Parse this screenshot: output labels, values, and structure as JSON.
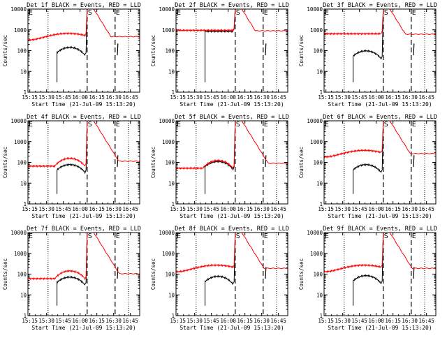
{
  "chart_data": [
    {
      "type": "line",
      "title": "Det 1f BLACK = Events, RED = LLD",
      "xlabel": "Start Time (21-Jul-09 15:13:20)",
      "ylabel": "Counts/sec",
      "x_ticks": [
        "15:15",
        "15:30",
        "15:45",
        "16:00",
        "16:15",
        "16:30",
        "16:45"
      ],
      "y_ticks": [
        "1",
        "10",
        "100",
        "1000",
        "10000"
      ],
      "ylim": [
        1,
        10000
      ],
      "y_scale": "log",
      "x_minutes_range": [
        0,
        100
      ],
      "markers": [
        {
          "label": "E",
          "time_min": 0
        },
        {
          "label": "S",
          "time_min": 53
        },
        {
          "label": "E",
          "time_min": 78
        }
      ],
      "series": [
        {
          "name": "Events",
          "color": "#000000",
          "style": "A",
          "level": 110
        },
        {
          "name": "LLD",
          "color": "#ff0000",
          "style": "R",
          "level": 500
        }
      ]
    },
    {
      "type": "line",
      "title": "Det 2f BLACK = Events, RED = LLD",
      "xlabel": "Start Time (21-Jul-09 15:13:20)",
      "ylabel": "Counts/sec",
      "x_ticks": [
        "15:15",
        "15:30",
        "15:45",
        "16:00",
        "16:15",
        "16:30",
        "16:45"
      ],
      "y_ticks": [
        "1",
        "10",
        "100",
        "1000",
        "10000"
      ],
      "ylim": [
        1,
        10000
      ],
      "y_scale": "log",
      "x_minutes_range": [
        0,
        100
      ],
      "markers": [
        {
          "label": "E",
          "time_min": 0
        },
        {
          "label": "S",
          "time_min": 53
        },
        {
          "label": "E",
          "time_min": 78
        }
      ],
      "series": [
        {
          "name": "Events",
          "color": "#000000",
          "style": "F",
          "level": 850
        },
        {
          "name": "LLD",
          "color": "#ff0000",
          "style": "F",
          "level": 950
        }
      ]
    },
    {
      "type": "line",
      "title": "Det 3f BLACK = Events, RED = LLD",
      "xlabel": "Start Time (21-Jul-09 15:13:20)",
      "ylabel": "Counts/sec",
      "x_ticks": [
        "15:15",
        "15:30",
        "15:45",
        "16:00",
        "16:15",
        "16:30",
        "16:45"
      ],
      "y_ticks": [
        "1",
        "10",
        "100",
        "1000",
        "10000"
      ],
      "ylim": [
        1,
        10000
      ],
      "y_scale": "log",
      "x_minutes_range": [
        0,
        100
      ],
      "markers": [
        {
          "label": "E",
          "time_min": 0
        },
        {
          "label": "S",
          "time_min": 53
        },
        {
          "label": "E",
          "time_min": 78
        }
      ],
      "series": [
        {
          "name": "Events",
          "color": "#000000",
          "style": "A",
          "level": 75
        },
        {
          "name": "LLD",
          "color": "#ff0000",
          "style": "F",
          "level": 650
        }
      ]
    },
    {
      "type": "line",
      "title": "Det 4f BLACK = Events, RED = LLD",
      "xlabel": "Start Time (21-Jul-09 15:13:20)",
      "ylabel": "Counts/sec",
      "x_ticks": [
        "15:15",
        "15:30",
        "15:45",
        "16:00",
        "16:15",
        "16:30",
        "16:45"
      ],
      "y_ticks": [
        "1",
        "10",
        "100",
        "1000",
        "10000"
      ],
      "ylim": [
        1,
        10000
      ],
      "y_scale": "log",
      "x_minutes_range": [
        0,
        100
      ],
      "markers": [
        {
          "label": "E",
          "time_min": 0
        },
        {
          "label": "S",
          "time_min": 53
        },
        {
          "label": "E",
          "time_min": 78
        }
      ],
      "series": [
        {
          "name": "Events",
          "color": "#000000",
          "style": "A",
          "level": 60
        },
        {
          "name": "LLD",
          "color": "#ff0000",
          "style": "A",
          "level": 120
        }
      ]
    },
    {
      "type": "line",
      "title": "Det 5f BLACK = Events, RED = LLD",
      "xlabel": "Start Time (21-Jul-09 15:13:20)",
      "ylabel": "Counts/sec",
      "x_ticks": [
        "15:15",
        "15:30",
        "15:45",
        "16:00",
        "16:15",
        "16:30",
        "16:45"
      ],
      "y_ticks": [
        "1",
        "10",
        "100",
        "1000",
        "10000"
      ],
      "ylim": [
        1,
        10000
      ],
      "y_scale": "log",
      "x_minutes_range": [
        0,
        100
      ],
      "markers": [
        {
          "label": "E",
          "time_min": 0
        },
        {
          "label": "S",
          "time_min": 53
        },
        {
          "label": "E",
          "time_min": 78
        }
      ],
      "series": [
        {
          "name": "Events",
          "color": "#000000",
          "style": "A",
          "level": 85
        },
        {
          "name": "LLD",
          "color": "#ff0000",
          "style": "A",
          "level": 95
        }
      ]
    },
    {
      "type": "line",
      "title": "Det 6f BLACK = Events, RED = LLD",
      "xlabel": "Start Time (21-Jul-09 15:13:20)",
      "ylabel": "Counts/sec",
      "x_ticks": [
        "15:15",
        "15:30",
        "15:45",
        "16:00",
        "16:15",
        "16:30",
        "16:45"
      ],
      "y_ticks": [
        "1",
        "10",
        "100",
        "1000",
        "10000"
      ],
      "ylim": [
        1,
        10000
      ],
      "y_scale": "log",
      "x_minutes_range": [
        0,
        100
      ],
      "markers": [
        {
          "label": "E",
          "time_min": 0
        },
        {
          "label": "S",
          "time_min": 53
        },
        {
          "label": "E",
          "time_min": 78
        }
      ],
      "series": [
        {
          "name": "Events",
          "color": "#000000",
          "style": "A",
          "level": 60
        },
        {
          "name": "LLD",
          "color": "#ff0000",
          "style": "R",
          "level": 280
        }
      ]
    },
    {
      "type": "line",
      "title": "Det 7f BLACK = Events, RED = LLD",
      "xlabel": "Start Time (21-Jul-09 15:13:20)",
      "ylabel": "Counts/sec",
      "x_ticks": [
        "15:15",
        "15:30",
        "15:45",
        "16:00",
        "16:15",
        "16:30",
        "16:45"
      ],
      "y_ticks": [
        "1",
        "10",
        "100",
        "1000",
        "10000"
      ],
      "ylim": [
        1,
        10000
      ],
      "y_scale": "log",
      "x_minutes_range": [
        0,
        100
      ],
      "markers": [
        {
          "label": "E",
          "time_min": 0
        },
        {
          "label": "S",
          "time_min": 53
        },
        {
          "label": "E",
          "time_min": 78
        }
      ],
      "series": [
        {
          "name": "Events",
          "color": "#000000",
          "style": "A",
          "level": 55
        },
        {
          "name": "LLD",
          "color": "#ff0000",
          "style": "A",
          "level": 110
        }
      ]
    },
    {
      "type": "line",
      "title": "Det 8f BLACK = Events, RED = LLD",
      "xlabel": "Start Time (21-Jul-09 15:13:20)",
      "ylabel": "Counts/sec",
      "x_ticks": [
        "15:15",
        "15:30",
        "15:45",
        "16:00",
        "16:15",
        "16:30",
        "16:45"
      ],
      "y_ticks": [
        "1",
        "10",
        "100",
        "1000",
        "10000"
      ],
      "ylim": [
        1,
        10000
      ],
      "y_scale": "log",
      "x_minutes_range": [
        0,
        100
      ],
      "markers": [
        {
          "label": "E",
          "time_min": 0
        },
        {
          "label": "S",
          "time_min": 53
        },
        {
          "label": "E",
          "time_min": 78
        }
      ],
      "series": [
        {
          "name": "Events",
          "color": "#000000",
          "style": "A",
          "level": 60
        },
        {
          "name": "LLD",
          "color": "#ff0000",
          "style": "R",
          "level": 200
        }
      ]
    },
    {
      "type": "line",
      "title": "Det 9f BLACK = Events, RED = LLD",
      "xlabel": "Start Time (21-Jul-09 15:13:20)",
      "ylabel": "Counts/sec",
      "x_ticks": [
        "15:15",
        "15:30",
        "15:45",
        "16:00",
        "16:15",
        "16:30",
        "16:45"
      ],
      "y_ticks": [
        "1",
        "10",
        "100",
        "1000",
        "10000"
      ],
      "ylim": [
        1,
        10000
      ],
      "y_scale": "log",
      "x_minutes_range": [
        0,
        100
      ],
      "markers": [
        {
          "label": "E",
          "time_min": 0
        },
        {
          "label": "S",
          "time_min": 53
        },
        {
          "label": "E",
          "time_min": 78
        }
      ],
      "series": [
        {
          "name": "Events",
          "color": "#000000",
          "style": "A",
          "level": 65
        },
        {
          "name": "LLD",
          "color": "#ff0000",
          "style": "R",
          "level": 200
        }
      ]
    }
  ]
}
